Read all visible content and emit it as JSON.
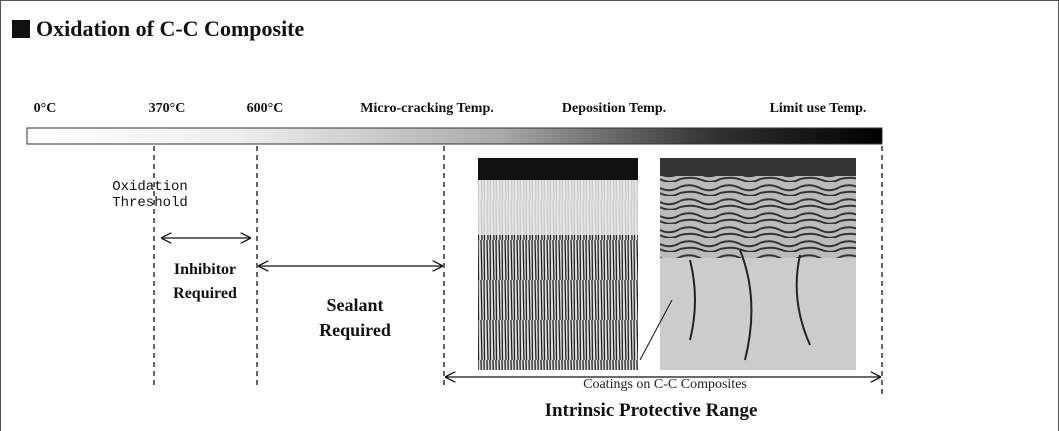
{
  "header": {
    "title": "Oxidation of C-C Composite"
  },
  "scale": {
    "labels": [
      "0°C",
      "370°C",
      "600°C",
      "Micro-cracking Temp.",
      "Deposition Temp.",
      "Limit use Temp."
    ]
  },
  "regions": {
    "oxidation_threshold": [
      "Oxidation",
      "Threshold"
    ],
    "inhibitor": [
      "Inhibitor",
      "Required"
    ],
    "sealant": [
      "Sealant",
      "Required"
    ],
    "intrinsic": "Intrinsic Protective Range"
  },
  "figure": {
    "caption": "Coatings on C-C Composites"
  }
}
